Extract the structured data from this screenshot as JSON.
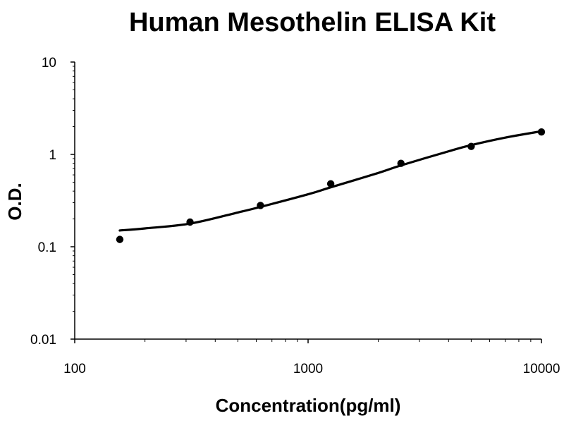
{
  "chart_data": {
    "type": "scatter",
    "title": "Human Mesothelin ELISA Kit",
    "xlabel": "Concentration(pg/ml)",
    "ylabel": "O.D.",
    "x_scale": "log",
    "y_scale": "log",
    "xlim": [
      100,
      10000
    ],
    "ylim": [
      0.01,
      10
    ],
    "x_ticks": [
      "100",
      "1000",
      "10000"
    ],
    "y_ticks": [
      "0.01",
      "0.1",
      "1",
      "10"
    ],
    "grid": false,
    "legend": "none",
    "series": [
      {
        "kind": "points",
        "x": [
          156,
          312,
          625,
          1250,
          2500,
          5000,
          10000
        ],
        "y": [
          0.12,
          0.185,
          0.28,
          0.48,
          0.8,
          1.22,
          1.75
        ]
      },
      {
        "kind": "fit-curve",
        "x": [
          156,
          200,
          312,
          500,
          625,
          1000,
          1250,
          2000,
          2500,
          4000,
          5000,
          7000,
          10000
        ],
        "y": [
          0.15,
          0.158,
          0.178,
          0.235,
          0.27,
          0.37,
          0.44,
          0.63,
          0.76,
          1.08,
          1.26,
          1.52,
          1.78
        ]
      }
    ],
    "colors": {
      "line": "#000000",
      "points": "#000000",
      "axis": "#000000"
    }
  }
}
